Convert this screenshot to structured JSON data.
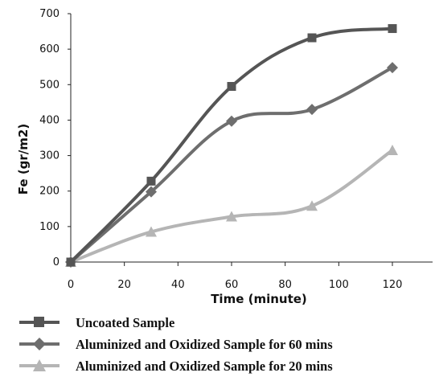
{
  "chart_data": {
    "type": "line",
    "title": "",
    "xlabel": "Time (minute)",
    "ylabel": "Fe (gr/m2)",
    "xlim": [
      0,
      135
    ],
    "ylim": [
      0,
      700
    ],
    "xticks": [
      0,
      20,
      40,
      60,
      80,
      100,
      120
    ],
    "yticks": [
      0,
      100,
      200,
      300,
      400,
      500,
      600,
      700
    ],
    "grid": false,
    "legend_position": "bottom",
    "x": [
      0,
      30,
      60,
      90,
      120
    ],
    "series": [
      {
        "name": "Uncoated Sample",
        "marker": "square",
        "color": "#555555",
        "values": [
          0,
          228,
          495,
          632,
          658
        ]
      },
      {
        "name": "Aluminized and Oxidized Sample for 60 mins",
        "marker": "diamond",
        "color": "#6e6e6e",
        "values": [
          0,
          198,
          397,
          430,
          548
        ]
      },
      {
        "name": "Aluminized and Oxidized Sample for 20 mins",
        "marker": "triangle",
        "color": "#b5b5b5",
        "values": [
          0,
          85,
          128,
          158,
          315
        ]
      }
    ]
  }
}
